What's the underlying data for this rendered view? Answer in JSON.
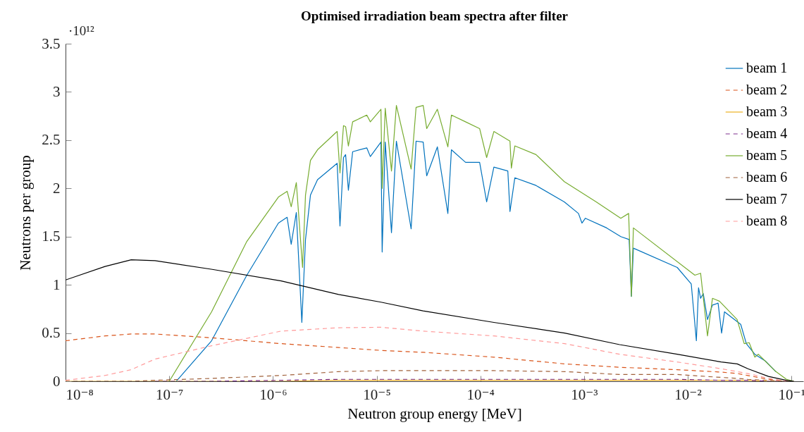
{
  "chart_data": {
    "type": "line",
    "title": "Optimised irradiation beam spectra after filter",
    "xlabel": "Neutron group energy [MeV]",
    "ylabel": "Neutrons per group",
    "annotations": [
      "·10¹²"
    ],
    "log": "x",
    "grid": false,
    "legend": "top right",
    "xlim": [
      1e-08,
      0.13
    ],
    "xticks": [
      {
        "value": 1e-08,
        "label": "10⁻⁸"
      },
      {
        "value": 1e-07,
        "label": "10⁻⁷"
      },
      {
        "value": 1e-06,
        "label": "10⁻⁶"
      },
      {
        "value": 1e-05,
        "label": "10⁻⁵"
      },
      {
        "value": 0.0001,
        "label": "10⁻⁴"
      },
      {
        "value": 0.001,
        "label": "10⁻³"
      },
      {
        "value": 0.01,
        "label": "10⁻²"
      },
      {
        "value": 0.1,
        "label": "10⁻¹"
      }
    ],
    "ylim": [
      0,
      3.5
    ],
    "yticks": [
      0,
      0.5,
      1,
      1.5,
      2,
      2.5,
      3,
      3.5
    ],
    "x": [
      1e-08,
      2.4e-08,
      4.3e-08,
      7.3e-08,
      2.6e-07,
      1.2e-06,
      4.3e-06,
      1.1e-05,
      2.8e-05,
      0.000135,
      0.00065,
      0.0022,
      0.0079,
      0.021,
      0.03,
      0.038,
      0.06,
      0.089,
      0.105
    ],
    "series": [
      {
        "name": "beam 1",
        "color": "#0072bd",
        "line_style": "solid",
        "x": [
          1.17e-07,
          2.56e-07,
          5.6e-07,
          1.13e-06,
          1.37e-06,
          1.5e-06,
          1.68e-06,
          1.9e-06,
          2.06e-06,
          2.3e-06,
          2.69e-06,
          4.16e-06,
          4.43e-06,
          4.79e-06,
          5.02e-06,
          5.34e-06,
          5.87e-06,
          8.03e-06,
          8.69e-06,
          1.1e-05,
          1.13e-05,
          1.21e-05,
          1.39e-05,
          1.55e-05,
          2.15e-05,
          2.4e-05,
          2.81e-05,
          3.04e-05,
          3.85e-05,
          4.86e-05,
          5.26e-05,
          7.2e-05,
          9.84e-05,
          0.000115,
          0.000135,
          0.000184,
          0.000193,
          0.000215,
          0.000344,
          0.000645,
          0.000883,
          0.000954,
          0.00103,
          0.00165,
          0.00226,
          0.00272,
          0.00286,
          0.00299,
          0.00791,
          0.0108,
          0.0121,
          0.0127,
          0.0133,
          0.0141,
          0.0155,
          0.0173,
          0.0196,
          0.0212,
          0.0226,
          0.0324,
          0.0367,
          0.0443,
          0.056,
          0.0708
        ],
        "values": [
          0,
          0.42,
          1.1,
          1.64,
          1.7,
          1.42,
          1.75,
          0.61,
          1.47,
          1.93,
          2.09,
          2.26,
          1.61,
          2.32,
          2.35,
          1.98,
          2.38,
          2.42,
          2.33,
          2.48,
          1.34,
          2.48,
          1.54,
          2.49,
          1.58,
          2.49,
          2.48,
          2.13,
          2.43,
          1.74,
          2.4,
          2.27,
          2.27,
          1.86,
          2.22,
          2.18,
          1.76,
          2.11,
          2.03,
          1.86,
          1.74,
          1.64,
          1.69,
          1.59,
          1.5,
          1.47,
          0.88,
          1.38,
          1.18,
          1.01,
          0.42,
          0.97,
          0.86,
          0.91,
          0.64,
          0.79,
          0.81,
          0.5,
          0.72,
          0.59,
          0.39,
          0.28,
          0.21,
          0.1
        ]
      },
      {
        "name": "beam 2",
        "color": "#d95319",
        "line_style": "dashed",
        "values": [
          0.42,
          0.47,
          0.49,
          0.49,
          0.45,
          0.39,
          0.35,
          0.32,
          0.3,
          0.25,
          0.18,
          0.145,
          0.12,
          0.095,
          0.08,
          0.06,
          0.02,
          0,
          0
        ]
      },
      {
        "name": "beam 3",
        "color": "#edb120",
        "line_style": "solid",
        "values": [
          0,
          0,
          0,
          0,
          0,
          0,
          0.01,
          0.01,
          0.01,
          0.01,
          0.01,
          0.01,
          0.01,
          0.01,
          0.01,
          0.01,
          0,
          0,
          0
        ]
      },
      {
        "name": "beam 4",
        "color": "#7e2f8e",
        "line_style": "dashed",
        "values": [
          null,
          null,
          null,
          0,
          0,
          0.01,
          0.02,
          0.02,
          0.02,
          0.02,
          0.02,
          0.02,
          0.02,
          0.01,
          0.01,
          0.01,
          0,
          0,
          0
        ]
      },
      {
        "name": "beam 5",
        "color": "#77ac30",
        "line_style": "solid",
        "x": [
          1e-07,
          2.56e-07,
          5.6e-07,
          1.13e-06,
          1.37e-06,
          1.5e-06,
          1.68e-06,
          1.93e-06,
          2.06e-06,
          2.3e-06,
          2.69e-06,
          4.16e-06,
          4.43e-06,
          4.79e-06,
          5.02e-06,
          5.34e-06,
          5.87e-06,
          8.03e-06,
          8.69e-06,
          1.1e-05,
          1.13e-05,
          1.21e-05,
          1.39e-05,
          1.55e-05,
          2.15e-05,
          2.4e-05,
          2.81e-05,
          3.04e-05,
          3.85e-05,
          4.86e-05,
          5.26e-05,
          7.2e-05,
          9.84e-05,
          0.000115,
          0.000135,
          0.000193,
          0.000199,
          0.000215,
          0.000344,
          0.000645,
          0.00131,
          0.00226,
          0.00269,
          0.00286,
          0.00299,
          0.0117,
          0.0133,
          0.0155,
          0.0173,
          0.0202,
          0.0299,
          0.035,
          0.0391,
          0.0443,
          0.0479,
          0.0708,
          0.0895,
          0.105
        ],
        "values": [
          0,
          0.72,
          1.45,
          1.91,
          1.97,
          1.81,
          2.06,
          1.18,
          1.93,
          2.29,
          2.4,
          2.59,
          2.16,
          2.65,
          2.64,
          2.44,
          2.69,
          2.76,
          2.69,
          2.82,
          2.0,
          2.83,
          2.18,
          2.86,
          2.2,
          2.84,
          2.86,
          2.62,
          2.82,
          2.43,
          2.76,
          2.69,
          2.62,
          2.32,
          2.59,
          2.49,
          2.21,
          2.44,
          2.35,
          2.07,
          1.86,
          1.69,
          1.74,
          0.88,
          1.59,
          1.1,
          1.12,
          0.47,
          0.86,
          0.83,
          0.64,
          0.39,
          0.4,
          0.25,
          0.28,
          0.1,
          0.02,
          0
        ]
      },
      {
        "name": "beam 6",
        "color": "#a0603a",
        "line_style": "dashed",
        "values": [
          0,
          0,
          0,
          0.01,
          0.03,
          0.06,
          0.1,
          0.11,
          0.11,
          0.11,
          0.1,
          0.07,
          0.07,
          0.04,
          0.03,
          0.02,
          0.01,
          0,
          0
        ]
      },
      {
        "name": "beam 7",
        "color": "#000000",
        "line_style": "solid",
        "values": [
          1.05,
          1.19,
          1.26,
          1.25,
          1.16,
          1.04,
          0.9,
          0.82,
          0.73,
          0.61,
          0.5,
          0.38,
          0.28,
          0.2,
          0.18,
          0.13,
          0.05,
          0.01,
          0
        ]
      },
      {
        "name": "beam 8",
        "color": "#ff9999",
        "line_style": "dashed",
        "values": [
          0.01,
          0.06,
          0.12,
          0.23,
          0.37,
          0.52,
          0.555,
          0.56,
          0.52,
          0.47,
          0.39,
          0.28,
          0.2,
          0.13,
          0.1,
          0.08,
          0.03,
          0,
          null
        ]
      }
    ]
  }
}
